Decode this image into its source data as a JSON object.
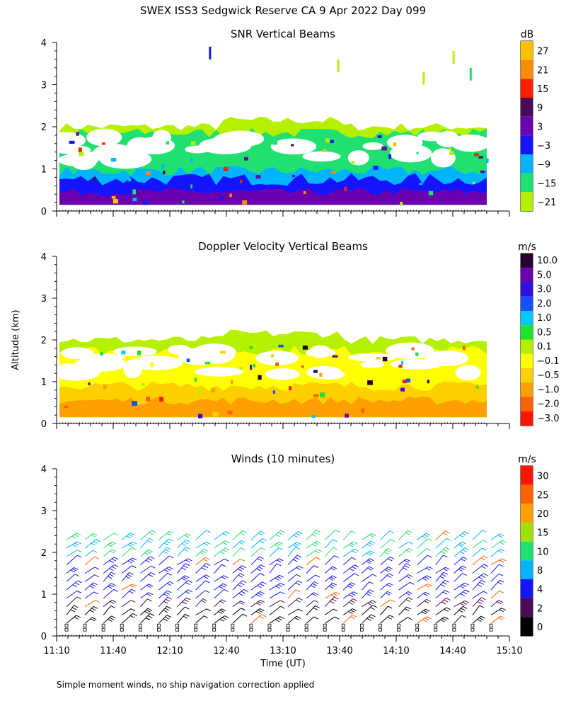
{
  "header": {
    "title": "SWEX ISS3 Sedgwick Reserve CA   9 Apr 2022 Day 099"
  },
  "footer": {
    "note": "Simple moment winds, no ship navigation correction applied"
  },
  "axes": {
    "ylabel": "Altitude (km)",
    "xlabel": "Time (UT)",
    "x_ticks": [
      "11:10",
      "11:40",
      "12:10",
      "12:40",
      "13:10",
      "13:40",
      "14:10",
      "14:40",
      "15:10"
    ],
    "x_range_hours": [
      11.1667,
      15.1667
    ],
    "y_ticks": [
      "0",
      "1",
      "2",
      "3",
      "4"
    ],
    "y_range_km": [
      0,
      4
    ]
  },
  "chart_data": [
    {
      "type": "heatmap",
      "title": "SNR Vertical Beams",
      "unit": "dB",
      "legend_labels": [
        "27",
        "21",
        "15",
        "9",
        "3",
        "−3",
        "−9",
        "−15",
        "−21"
      ],
      "colors": [
        "#ffc000",
        "#ff8c00",
        "#ff2000",
        "#4a0a55",
        "#6a00b0",
        "#1414ff",
        "#00b4ff",
        "#20e070",
        "#b4f000"
      ],
      "ylim": [
        0,
        4
      ],
      "layers": [
        {
          "label": "-21",
          "base_km": 2.0,
          "amp_km": 0.1,
          "color": "#b4f000"
        },
        {
          "label": "-15",
          "base_km": 1.85,
          "amp_km": 0.12,
          "color": "#20e070"
        },
        {
          "label": "-9",
          "base_km": 0.95,
          "amp_km": 0.12,
          "color": "#00b4ff"
        },
        {
          "label": "-3",
          "base_km": 0.75,
          "amp_km": 0.15,
          "color": "#1414ff"
        },
        {
          "label": "3",
          "base_km": 0.45,
          "amp_km": 0.1,
          "color": "#6a00b0"
        }
      ]
    },
    {
      "type": "heatmap",
      "title": "Doppler Velocity Vertical Beams",
      "unit": "m/s",
      "legend_labels": [
        "10.0",
        "5.0",
        "3.0",
        "2.0",
        "1.0",
        "0.5",
        "0.1",
        "−0.1",
        "−0.5",
        "−1.0",
        "−2.0",
        "−3.0"
      ],
      "colors": [
        "#2a0030",
        "#6a00b0",
        "#3010e0",
        "#1450ff",
        "#00c8ff",
        "#20e030",
        "#b4f000",
        "#ffff00",
        "#ffd000",
        "#ffa000",
        "#ff6000",
        "#ff1400"
      ],
      "ylim": [
        0,
        4
      ],
      "layers": [
        {
          "label": "0.1",
          "base_km": 2.0,
          "amp_km": 0.1,
          "color": "#b4f000"
        },
        {
          "label": "-0.1",
          "base_km": 1.75,
          "amp_km": 0.12,
          "color": "#ffff00"
        },
        {
          "label": "-0.5",
          "base_km": 0.9,
          "amp_km": 0.12,
          "color": "#ffd000"
        },
        {
          "label": "-1.0",
          "base_km": 0.55,
          "amp_km": 0.1,
          "color": "#ffa000"
        }
      ]
    },
    {
      "type": "scatter",
      "title": "Winds (10 minutes)",
      "unit": "m/s",
      "legend_labels": [
        "30",
        "25",
        "20",
        "15",
        "10",
        "8",
        "4",
        "2",
        "0"
      ],
      "colors": [
        "#ff1400",
        "#ff6000",
        "#ffa000",
        "#a0e000",
        "#20e070",
        "#00b4ff",
        "#1414ff",
        "#4a0a55",
        "#000000"
      ],
      "ylim": [
        0,
        4
      ],
      "profiles_count": 24,
      "barb_heights_km": [
        0.3,
        0.5,
        0.7,
        0.9,
        1.1,
        1.3,
        1.5,
        1.7,
        1.9,
        2.1,
        2.3
      ]
    }
  ]
}
